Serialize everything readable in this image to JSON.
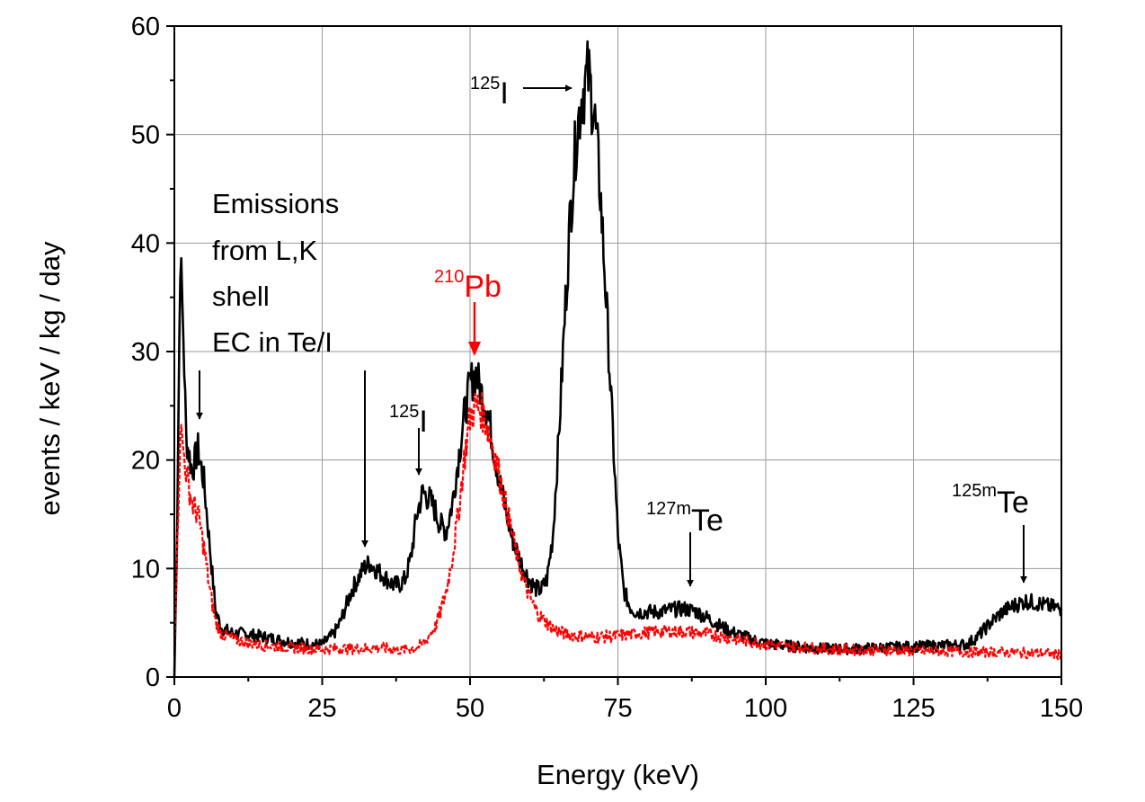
{
  "chart_data": {
    "type": "line",
    "title": "",
    "xlabel": "Energy (keV)",
    "ylabel": "events / keV / kg / day",
    "xlim": [
      0,
      150
    ],
    "ylim": [
      0,
      60
    ],
    "xticks": [
      "0",
      "25",
      "50",
      "75",
      "100",
      "125",
      "150"
    ],
    "yticks": [
      "0",
      "10",
      "20",
      "30",
      "40",
      "50",
      "60"
    ],
    "grid": true,
    "legend": "none",
    "series": [
      {
        "color": "#000000",
        "style": "solid",
        "x": [
          0,
          0.5,
          1,
          1.5,
          2,
          3,
          4,
          5,
          6,
          7,
          8,
          10,
          12,
          15,
          18,
          20,
          22,
          24,
          25,
          26,
          27,
          28,
          29,
          30,
          31,
          32,
          33,
          34,
          35,
          36,
          37,
          38,
          39,
          40,
          41,
          42,
          43,
          44,
          45,
          46,
          47,
          48,
          49,
          50,
          51,
          52,
          53,
          54,
          55,
          56,
          57,
          58,
          59,
          60,
          61,
          62,
          63,
          64,
          65,
          66,
          67,
          68,
          69,
          70,
          71,
          72,
          73,
          74,
          75,
          76,
          77,
          78,
          80,
          82,
          84,
          86,
          88,
          90,
          92,
          94,
          96,
          98,
          100,
          105,
          110,
          115,
          120,
          125,
          130,
          134,
          136,
          138,
          140,
          142,
          144,
          146,
          148,
          150
        ],
        "y": [
          0,
          15,
          39,
          32,
          22,
          19,
          21,
          18,
          12,
          6,
          4.5,
          4,
          4,
          3.7,
          3.4,
          3.2,
          3.1,
          3,
          3,
          3.5,
          4,
          5,
          6.5,
          8,
          9,
          10,
          10.5,
          10,
          9.5,
          9,
          8.5,
          8.5,
          9,
          11,
          15,
          17,
          16.5,
          15.5,
          14,
          13.5,
          16,
          20,
          24,
          27,
          28,
          26,
          24.5,
          21,
          18,
          15.5,
          13,
          11.5,
          10,
          9,
          8.2,
          8,
          9,
          13,
          22,
          33,
          43,
          50,
          54,
          55.5,
          52,
          45,
          35,
          24,
          13,
          8,
          6.5,
          6,
          6,
          6,
          6.2,
          6.3,
          6.1,
          5.5,
          4.8,
          4.2,
          3.8,
          3.4,
          3.1,
          2.8,
          2.6,
          2.6,
          2.7,
          2.8,
          2.9,
          3,
          3.8,
          5,
          6,
          6.6,
          7,
          6.8,
          6.5,
          6.3
        ]
      },
      {
        "color": "#ff0000",
        "style": "dashed",
        "x": [
          0,
          0.5,
          1,
          1.5,
          2,
          3,
          4,
          5,
          6,
          7,
          8,
          10,
          12,
          15,
          20,
          25,
          30,
          35,
          38,
          40,
          42,
          44,
          45,
          46,
          47,
          48,
          49,
          50,
          51,
          52,
          53,
          54,
          55,
          56,
          57,
          58,
          59,
          60,
          61,
          62,
          63,
          64,
          65,
          66,
          68,
          70,
          72,
          75,
          78,
          80,
          82,
          85,
          88,
          90,
          95,
          100,
          105,
          110,
          115,
          120,
          125,
          130,
          135,
          140,
          145,
          150
        ],
        "y": [
          3,
          12,
          23,
          21,
          19,
          16,
          15,
          12,
          8,
          5,
          4,
          3.5,
          3.2,
          2.9,
          2.7,
          2.6,
          2.6,
          2.7,
          2.5,
          2.6,
          3,
          4.5,
          6,
          8,
          11,
          15,
          20,
          24,
          25,
          24.5,
          23,
          21,
          18.5,
          16,
          13.5,
          11,
          9,
          7.5,
          6.3,
          5.5,
          5,
          4.5,
          4.2,
          4,
          3.8,
          3.7,
          3.7,
          3.8,
          4,
          4.1,
          4.2,
          4.2,
          4.1,
          4,
          3.5,
          3,
          2.8,
          2.6,
          2.5,
          2.5,
          2.4,
          2.4,
          2.3,
          2.3,
          2.2,
          2.1
        ]
      }
    ],
    "annotations": {
      "emissions": [
        "Emissions",
        "from L,K",
        "shell",
        "EC in Te/I"
      ],
      "i125_main": {
        "sup": "125",
        "base": "I"
      },
      "pb210": {
        "sup": "210",
        "base": "Pb"
      },
      "i125_small": {
        "sup": "125",
        "base": "I"
      },
      "te127m": {
        "sup": "127m",
        "base": "Te"
      },
      "te125m": {
        "sup": "125m",
        "base": "Te"
      }
    },
    "annotation_color": "#ff0000"
  }
}
